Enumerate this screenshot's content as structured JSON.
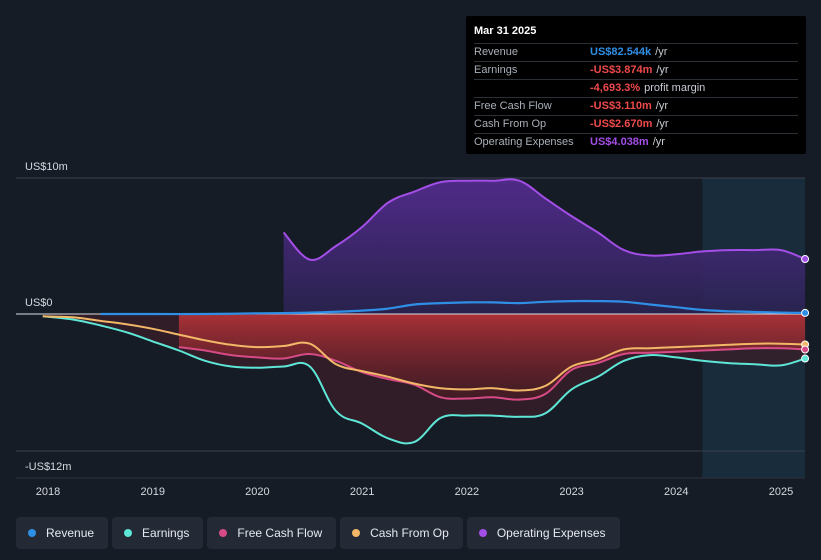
{
  "colors": {
    "revenue": "#2f8fe6",
    "earnings": "#5ee6d6",
    "fcf": "#d64b86",
    "cfo": "#f2b867",
    "opex": "#a44ee8"
  },
  "tooltip": {
    "date": "Mar 31 2025",
    "rows": [
      {
        "label": "Revenue",
        "value": "US$82.544k",
        "unit": "/yr",
        "color": "#2f8fe6"
      },
      {
        "label": "Earnings",
        "value": "-US$3.874m",
        "unit": "/yr",
        "color": "#ef4a4a"
      },
      {
        "label": "",
        "value": "-4,693.3%",
        "unit": "profit margin",
        "color": "#ef4a4a"
      },
      {
        "label": "Free Cash Flow",
        "value": "-US$3.110m",
        "unit": "/yr",
        "color": "#ef4a4a"
      },
      {
        "label": "Cash From Op",
        "value": "-US$2.670m",
        "unit": "/yr",
        "color": "#ef4a4a"
      },
      {
        "label": "Operating Expenses",
        "value": "US$4.038m",
        "unit": "/yr",
        "color": "#a44ee8"
      }
    ]
  },
  "legend": [
    {
      "label": "Revenue",
      "key": "revenue",
      "color": "#2f8fe6"
    },
    {
      "label": "Earnings",
      "key": "earnings",
      "color": "#5ee6d6"
    },
    {
      "label": "Free Cash Flow",
      "key": "fcf",
      "color": "#d64b86"
    },
    {
      "label": "Cash From Op",
      "key": "cfo",
      "color": "#f2b867"
    },
    {
      "label": "Operating Expenses",
      "key": "opex",
      "color": "#a44ee8"
    }
  ],
  "chart_data": {
    "type": "line",
    "title": "",
    "ylabel_top": "US$10m",
    "ylabel_zero": "US$0",
    "ylabel_bottom": "-US$12m",
    "ylim": [
      -12,
      10
    ],
    "xlim": [
      2017.7,
      2025.23
    ],
    "xticks": [
      2018,
      2019,
      2020,
      2021,
      2022,
      2023,
      2024,
      2025
    ],
    "xtick_labels": [
      "2018",
      "2019",
      "2020",
      "2021",
      "2022",
      "2023",
      "2024",
      "2025"
    ],
    "forecast_start": 2024.25,
    "series": [
      {
        "name": "Revenue",
        "key": "revenue",
        "x": [
          2018.5,
          2019.0,
          2019.5,
          2020.0,
          2020.5,
          2021.0,
          2021.25,
          2021.5,
          2021.75,
          2022.0,
          2022.25,
          2022.5,
          2022.75,
          2023.0,
          2023.25,
          2023.5,
          2023.75,
          2024.0,
          2024.25,
          2024.5,
          2024.75,
          2025.0,
          2025.23
        ],
        "values": [
          0.0,
          0.0,
          0.0,
          0.05,
          0.1,
          0.25,
          0.4,
          0.7,
          0.8,
          0.85,
          0.85,
          0.8,
          0.9,
          0.95,
          0.95,
          0.9,
          0.7,
          0.5,
          0.3,
          0.2,
          0.15,
          0.1,
          0.08
        ]
      },
      {
        "name": "Earnings",
        "key": "earnings",
        "x": [
          2017.95,
          2018.25,
          2018.5,
          2018.75,
          2019.0,
          2019.25,
          2019.5,
          2019.75,
          2020.0,
          2020.25,
          2020.5,
          2020.75,
          2021.0,
          2021.25,
          2021.5,
          2021.75,
          2022.0,
          2022.25,
          2022.5,
          2022.75,
          2023.0,
          2023.25,
          2023.5,
          2023.75,
          2024.0,
          2024.25,
          2024.5,
          2024.75,
          2025.0,
          2025.23
        ],
        "values": [
          -0.2,
          -0.5,
          -1.0,
          -1.6,
          -2.4,
          -3.2,
          -4.1,
          -4.6,
          -4.7,
          -4.6,
          -4.6,
          -8.5,
          -9.6,
          -10.9,
          -11.2,
          -9.1,
          -8.9,
          -8.9,
          -9.0,
          -8.7,
          -6.6,
          -5.5,
          -4.1,
          -3.6,
          -3.8,
          -4.1,
          -4.3,
          -4.4,
          -4.5,
          -3.9
        ]
      },
      {
        "name": "Free Cash Flow",
        "key": "fcf",
        "x": [
          2019.25,
          2019.5,
          2019.75,
          2020.0,
          2020.25,
          2020.5,
          2020.75,
          2021.0,
          2021.25,
          2021.5,
          2021.75,
          2022.0,
          2022.25,
          2022.5,
          2022.75,
          2023.0,
          2023.25,
          2023.5,
          2023.75,
          2024.0,
          2024.25,
          2024.5,
          2024.75,
          2025.0,
          2025.23
        ],
        "values": [
          -2.9,
          -3.2,
          -3.6,
          -3.8,
          -3.9,
          -3.5,
          -4.1,
          -5.1,
          -5.7,
          -6.2,
          -7.3,
          -7.4,
          -7.3,
          -7.5,
          -7.0,
          -4.9,
          -4.3,
          -3.5,
          -3.4,
          -3.3,
          -3.2,
          -3.1,
          -3.0,
          -3.0,
          -3.11
        ]
      },
      {
        "name": "Cash From Op",
        "key": "cfo",
        "x": [
          2017.95,
          2018.25,
          2018.5,
          2018.75,
          2019.0,
          2019.25,
          2019.5,
          2019.75,
          2020.0,
          2020.25,
          2020.5,
          2020.75,
          2021.0,
          2021.25,
          2021.5,
          2021.75,
          2022.0,
          2022.25,
          2022.5,
          2022.75,
          2023.0,
          2023.25,
          2023.5,
          2023.75,
          2024.0,
          2024.25,
          2024.5,
          2024.75,
          2025.0,
          2025.23
        ],
        "values": [
          -0.2,
          -0.3,
          -0.6,
          -0.9,
          -1.3,
          -1.8,
          -2.3,
          -2.7,
          -2.9,
          -2.8,
          -2.6,
          -4.4,
          -5.0,
          -5.5,
          -6.1,
          -6.5,
          -6.6,
          -6.5,
          -6.7,
          -6.3,
          -4.6,
          -4.0,
          -3.1,
          -3.0,
          -2.9,
          -2.8,
          -2.7,
          -2.6,
          -2.6,
          -2.67
        ]
      },
      {
        "name": "Operating Expenses",
        "key": "opex",
        "x": [
          2020.25,
          2020.5,
          2020.75,
          2021.0,
          2021.25,
          2021.5,
          2021.75,
          2022.0,
          2022.25,
          2022.5,
          2022.75,
          2023.0,
          2023.25,
          2023.5,
          2023.75,
          2024.0,
          2024.25,
          2024.5,
          2024.75,
          2025.0,
          2025.23
        ],
        "values": [
          6.0,
          4.0,
          5.0,
          6.4,
          8.2,
          9.0,
          9.7,
          9.8,
          9.8,
          9.8,
          8.5,
          7.2,
          6.0,
          4.7,
          4.3,
          4.4,
          4.6,
          4.7,
          4.7,
          4.7,
          4.04
        ]
      }
    ]
  }
}
